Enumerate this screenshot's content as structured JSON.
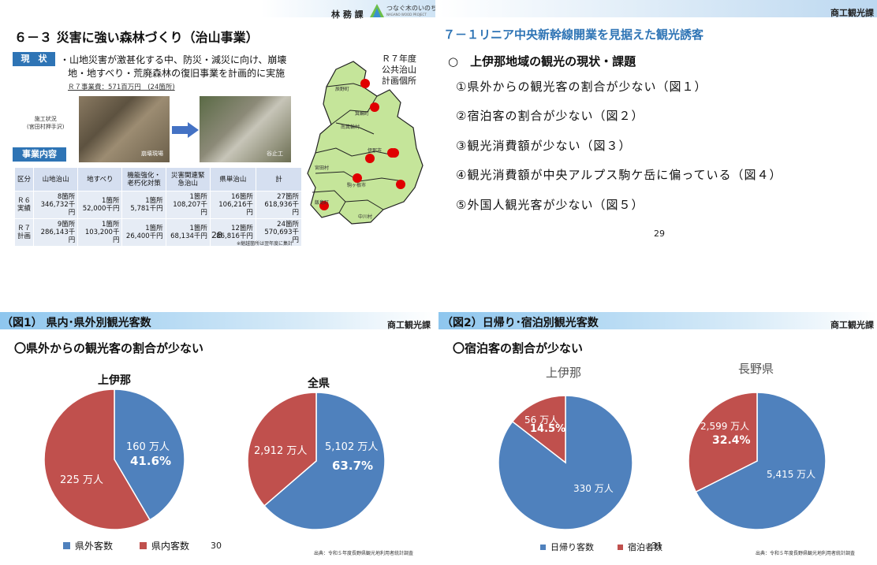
{
  "colors": {
    "blue": "#4f81bd",
    "red": "#c0504d",
    "map_green": "#c5e59a",
    "pin": "#e00000",
    "title_blue": "#2e74b5"
  },
  "p28": {
    "dept": "林 務 課",
    "logo_text": "つなぐ木のいのち",
    "logo_sub": "NAGANO WOOD PROJECT",
    "title": "６－３ 災害に強い森林づくり（治山事業）",
    "status_label": "現　状",
    "status_text1": "・山地災害が激甚化する中、防災・減災に向け、崩壊",
    "status_text2": "地・地すべり・荒廃森林の復旧事業を計画的に実施",
    "budget": "Ｒ７事業費：571百万円　(24箇所)",
    "photo_caption1": "施工状況",
    "photo_caption2": "(宮田村押手沢)",
    "photo_label1": "崩壊現場",
    "photo_label2": "谷止工",
    "content_label": "事業内容",
    "table": {
      "headers": [
        "区分",
        "山地治山",
        "地すべり",
        "機能強化・老朽化対策",
        "災害関連緊急治山",
        "県単治山",
        "計"
      ],
      "rows": [
        {
          "label": "Ｒ６実績",
          "cells": [
            "8箇所 346,732千円",
            "1箇所 52,000千円",
            "1箇所 5,781千円",
            "1箇所 108,207千円",
            "16箇所 106,216千円",
            "27箇所 618,936千円"
          ]
        },
        {
          "label": "Ｒ７計画",
          "cells": [
            "9箇所 286,143千円",
            "1箇所 103,200千円",
            "1箇所 26,400千円",
            "1箇所 68,134千円",
            "12箇所 86,816千円",
            "24箇所 570,693千円"
          ]
        }
      ]
    },
    "note": "※継越箇所は翌年度に集計",
    "map_title1": "Ｒ７年度",
    "map_title2": "公共治山",
    "map_title3": "計画個所",
    "map_labels": [
      "辰野町",
      "箕輪町",
      "南箕輪村",
      "伊那市",
      "宮田村",
      "駒ヶ根市",
      "飯島町",
      "中川村"
    ],
    "page": "28"
  },
  "p29": {
    "dept": "商工観光課",
    "title": "７－１リニア中央新幹線開業を見据えた観光誘客",
    "heading": "○　上伊那地域の観光の現状・課題",
    "items": [
      "①県外からの観光客の割合が少ない（図１）",
      "②宿泊客の割合が少ない（図２）",
      "③観光消費額が少ない（図３）",
      "④観光消費額が中央アルプス駒ケ岳に偏っている（図４）",
      "⑤外国人観光客が少ない（図５）"
    ],
    "page": "29"
  },
  "p30": {
    "dept": "商工観光課",
    "title": "（図1） 県内･県外別観光客数",
    "subtitle": "〇県外からの観光客の割合が少ない",
    "page": "30",
    "source": "出典：令和５年度長野県観光地利用者統計調査"
  },
  "p31": {
    "dept": "商工観光課",
    "title": "（図2）日帰り･宿泊別観光客数",
    "subtitle": "〇宿泊客の割合が少ない",
    "page": "31",
    "source": "出典：令和５年度長野県観光地利用者統計調査"
  },
  "chart_data": [
    {
      "type": "pie",
      "title": "上伊那",
      "series": [
        {
          "name": "県外客数",
          "value": 160,
          "label": "160 万人",
          "pct": "41.6%"
        },
        {
          "name": "県内客数",
          "value": 225,
          "label": "225 万人"
        }
      ],
      "legend": "bottom"
    },
    {
      "type": "pie",
      "title": "全県",
      "series": [
        {
          "name": "県外客数",
          "value": 5102,
          "label": "5,102 万人",
          "pct": "63.7%"
        },
        {
          "name": "県内客数",
          "value": 2912,
          "label": "2,912 万人"
        }
      ],
      "legend": "bottom"
    },
    {
      "type": "pie",
      "title": "上伊那",
      "series": [
        {
          "name": "日帰り客数",
          "value": 330,
          "label": "330 万人"
        },
        {
          "name": "宿泊者数",
          "value": 56,
          "label": "56 万人",
          "pct": "14.5%"
        }
      ],
      "legend": "bottom"
    },
    {
      "type": "pie",
      "title": "長野県",
      "series": [
        {
          "name": "日帰り客数",
          "value": 5415,
          "label": "5,415 万人"
        },
        {
          "name": "宿泊者数",
          "value": 2599,
          "label": "2,599 万人",
          "pct": "32.4%"
        }
      ],
      "legend": "bottom"
    }
  ]
}
